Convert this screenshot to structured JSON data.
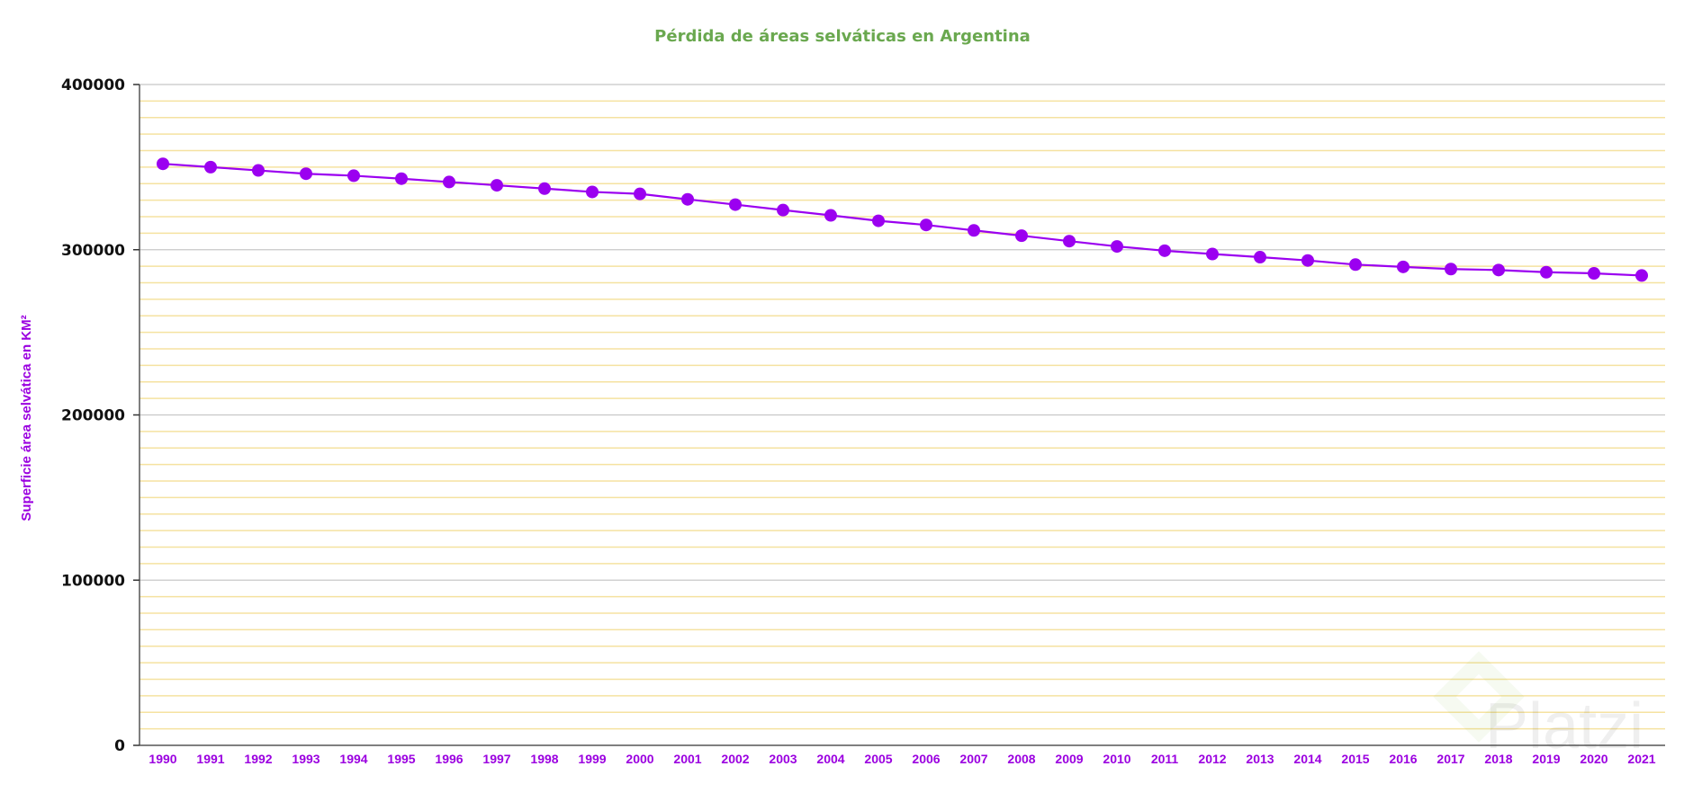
{
  "chart_data": {
    "type": "line",
    "title": "Pérdida de áreas selváticas en Argentina",
    "xlabel": "",
    "ylabel": "Superficie área selvática en KM²",
    "ylim": [
      0,
      400000
    ],
    "yticks": [
      "0",
      "100000",
      "200000",
      "300000",
      "400000"
    ],
    "minor_grid_step": 10000,
    "grid": true,
    "categories": [
      "1990",
      "1991",
      "1992",
      "1993",
      "1994",
      "1995",
      "1996",
      "1997",
      "1998",
      "1999",
      "2000",
      "2001",
      "2002",
      "2003",
      "2004",
      "2005",
      "2006",
      "2007",
      "2008",
      "2009",
      "2010",
      "2011",
      "2012",
      "2013",
      "2014",
      "2015",
      "2016",
      "2017",
      "2018",
      "2019",
      "2020",
      "2021"
    ],
    "series": [
      {
        "name": "Superficie área selvática",
        "color": "#9b00f0",
        "values": [
          352000,
          350000,
          348000,
          346000,
          344800,
          343000,
          341000,
          339000,
          337000,
          335000,
          333800,
          330500,
          327300,
          324000,
          320800,
          317500,
          315000,
          311700,
          308500,
          305200,
          302000,
          299400,
          297400,
          295500,
          293500,
          291000,
          289600,
          288300,
          287700,
          286400,
          285700,
          284400
        ]
      }
    ]
  },
  "watermark": "Platzi",
  "colors": {
    "title": "#6aa84f",
    "accent": "#9b00f0",
    "minor_grid": "#f5e2a0",
    "major_grid": "#c8c8c8"
  }
}
